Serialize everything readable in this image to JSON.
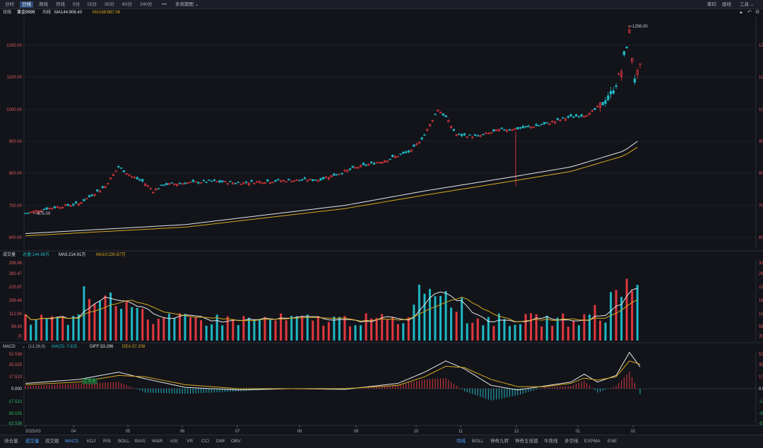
{
  "toolbar": {
    "periods": [
      "分时",
      "日线",
      "周线",
      "月线",
      "5分",
      "15分",
      "30分",
      "60分",
      "240分"
    ],
    "active_period": "日线",
    "more": "•••",
    "multi": "多周期图",
    "right_items": [
      "筹码",
      "画线",
      "工具"
    ]
  },
  "info": {
    "period": "日线",
    "symbol": "黄金9999",
    "ma_label": "均线",
    "ma144": "MA144:906.40",
    "ma169": "MA169:887.06"
  },
  "price_panel": {
    "y_ticks": [
      "1200.00",
      "1100.00",
      "1000.00",
      "900.00",
      "800.00",
      "700.00",
      "600.00"
    ],
    "y_ticks_right": [
      "12",
      "11",
      "10",
      "90",
      "80",
      "70",
      "60"
    ],
    "high_label": "1256.00",
    "low_label": "675.00"
  },
  "volume_panel": {
    "title": "成交量",
    "total": "总量:144.88万",
    "ma5": "MA5:214.91万",
    "ma10": "MA10:230.87万",
    "y_ticks": [
      "338.96",
      "282.47",
      "225.97",
      "169.48",
      "112.99",
      "56.49",
      "万"
    ],
    "y_ticks_right": [
      "33",
      "28",
      "22",
      "16",
      "11",
      "56",
      "万"
    ]
  },
  "macd_panel": {
    "title": "MACD",
    "params": "(12,26,9)",
    "macd": "MACD:-7.825",
    "diff": "DIFF:33.296",
    "dea": "DEA:37.208",
    "cross_label": "底背离",
    "y_ticks": [
      "52.538",
      "35.025",
      "17.513",
      "0.000",
      "-17.513",
      "-35.025",
      "-52.538"
    ],
    "y_ticks_right": [
      "52",
      "35",
      "17",
      "0.0",
      "-17",
      "-35",
      "-52"
    ]
  },
  "x_axis": [
    "2025/03",
    "04",
    "05",
    "06",
    "07",
    "08",
    "09",
    "10",
    "11",
    "12",
    "01",
    "02"
  ],
  "bottom_left_tabs": [
    "持仓量",
    "成交量",
    "成交额",
    "MACD",
    "KDJ",
    "RSI",
    "BOLL",
    "BIAS",
    "W&R",
    "ASI",
    "VR",
    "CCI",
    "DMI",
    "OBV"
  ],
  "bottom_left_active": [
    "成交量",
    "MACD"
  ],
  "bottom_right_tabs": [
    "均线",
    "BOLL",
    "神奇九转",
    "神奇五线谱",
    "牛熊线",
    "多空线",
    "EXPMA",
    "ENE"
  ],
  "bottom_right_active": "均线",
  "colors": {
    "up": "#e0383e",
    "down": "#1fb8c4",
    "ma144": "#e6e6e6",
    "ma169": "#d8a81e",
    "accent": "#2c4a7a"
  }
}
